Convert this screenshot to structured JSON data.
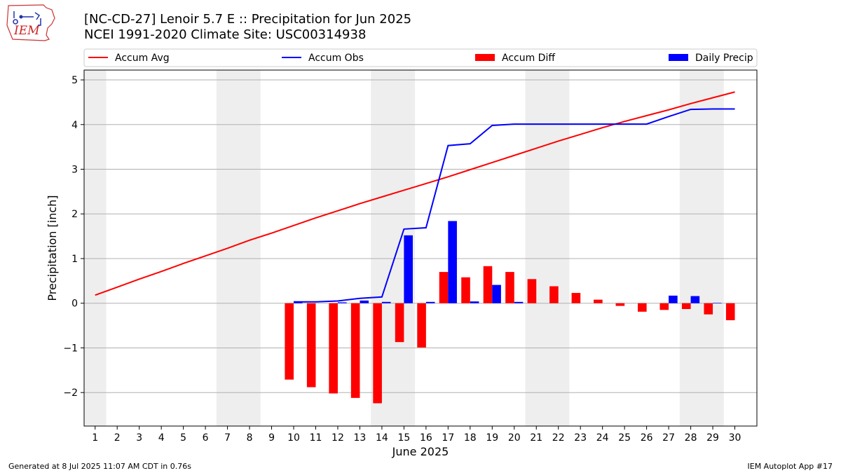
{
  "logo": {
    "text": "IEM",
    "icon": "iowa-state-outline-logo"
  },
  "header": {
    "title_line1": "[NC-CD-27] Lenoir 5.7 E :: Precipitation for Jun 2025",
    "title_line2": "NCEI 1991-2020 Climate Site: USC00314938"
  },
  "footer": {
    "left": "Generated at 8 Jul 2025 11:07 AM CDT in 0.76s",
    "right": "IEM Autoplot App #17"
  },
  "colors": {
    "accum_avg": "#ff0000",
    "accum_obs": "#0000ff",
    "accum_diff": "#ff0000",
    "daily_precip": "#0000ff",
    "weekend_shade": "#eeeeee",
    "grid": "#b0b0b0"
  },
  "chart_data": {
    "type": "bar",
    "title": "[NC-CD-27] Lenoir 5.7 E :: Precipitation for Jun 2025",
    "subtitle": "NCEI 1991-2020 Climate Site: USC00314938",
    "xlabel": "June 2025",
    "ylabel": "Precipitation [inch]",
    "x": [
      1,
      2,
      3,
      4,
      5,
      6,
      7,
      8,
      9,
      10,
      11,
      12,
      13,
      14,
      15,
      16,
      17,
      18,
      19,
      20,
      21,
      22,
      23,
      24,
      25,
      26,
      27,
      28,
      29,
      30
    ],
    "x_tick_labels": [
      "1",
      "2",
      "3",
      "4",
      "5",
      "6",
      "7",
      "8",
      "9",
      "10",
      "11",
      "12",
      "13",
      "14",
      "15",
      "16",
      "17",
      "18",
      "19",
      "20",
      "21",
      "22",
      "23",
      "24",
      "25",
      "26",
      "27",
      "28",
      "29",
      "30"
    ],
    "xlim": [
      0.5,
      31.0
    ],
    "ylim": [
      -2.75,
      5.22
    ],
    "y_ticks": [
      -2,
      -1,
      0,
      1,
      2,
      3,
      4,
      5
    ],
    "y_tick_labels": [
      "−2",
      "−1",
      "0",
      "1",
      "2",
      "3",
      "4",
      "5"
    ],
    "grid": "horizontal",
    "shaded_spans": [
      [
        0.5,
        1.5
      ],
      [
        6.5,
        8.5
      ],
      [
        13.5,
        15.5
      ],
      [
        20.5,
        22.5
      ],
      [
        27.5,
        29.5
      ]
    ],
    "legend_position": "top (above plot)",
    "series": [
      {
        "name": "Accum Avg",
        "kind": "line",
        "x": [
          1,
          2,
          3,
          4,
          5,
          6,
          7,
          8,
          9,
          10,
          11,
          12,
          13,
          14,
          15,
          16,
          17,
          18,
          19,
          20,
          21,
          22,
          23,
          24,
          25,
          26,
          27,
          28,
          29,
          30
        ],
        "values": [
          0.18,
          0.36,
          0.54,
          0.71,
          0.89,
          1.06,
          1.23,
          1.41,
          1.57,
          1.74,
          1.91,
          2.07,
          2.23,
          2.38,
          2.53,
          2.68,
          2.83,
          2.99,
          3.15,
          3.31,
          3.47,
          3.63,
          3.78,
          3.93,
          4.07,
          4.2,
          4.33,
          4.47,
          4.6,
          4.73
        ]
      },
      {
        "name": "Accum Obs",
        "kind": "line",
        "x": [
          10,
          11,
          12,
          13,
          14,
          15,
          16,
          17,
          18,
          19,
          20,
          21,
          22,
          23,
          24,
          25,
          26,
          27,
          28,
          29,
          30
        ],
        "values": [
          0.03,
          0.03,
          0.05,
          0.11,
          0.14,
          1.66,
          1.69,
          3.53,
          3.57,
          3.98,
          4.01,
          4.01,
          4.01,
          4.01,
          4.01,
          4.01,
          4.01,
          4.18,
          4.34,
          4.35,
          4.35
        ]
      },
      {
        "name": "Accum Diff",
        "kind": "bar",
        "x": [
          10,
          11,
          12,
          13,
          14,
          15,
          16,
          17,
          18,
          19,
          20,
          21,
          22,
          23,
          24,
          25,
          26,
          27,
          28,
          29,
          30
        ],
        "values": [
          -1.71,
          -1.88,
          -2.02,
          -2.12,
          -2.24,
          -0.87,
          -0.99,
          0.7,
          0.58,
          0.83,
          0.7,
          0.54,
          0.38,
          0.23,
          0.08,
          -0.06,
          -0.19,
          -0.15,
          -0.13,
          -0.25,
          -0.38
        ]
      },
      {
        "name": "Daily Precip",
        "kind": "bar",
        "x": [
          10,
          11,
          12,
          13,
          14,
          15,
          16,
          17,
          18,
          19,
          20,
          21,
          22,
          23,
          24,
          25,
          26,
          27,
          28,
          29,
          30
        ],
        "values": [
          0.03,
          0.0,
          0.02,
          0.06,
          0.03,
          1.52,
          0.03,
          1.84,
          0.04,
          0.41,
          0.03,
          0.0,
          0.0,
          0.0,
          0.0,
          0.0,
          0.0,
          0.17,
          0.16,
          0.01,
          0.0
        ]
      }
    ]
  }
}
